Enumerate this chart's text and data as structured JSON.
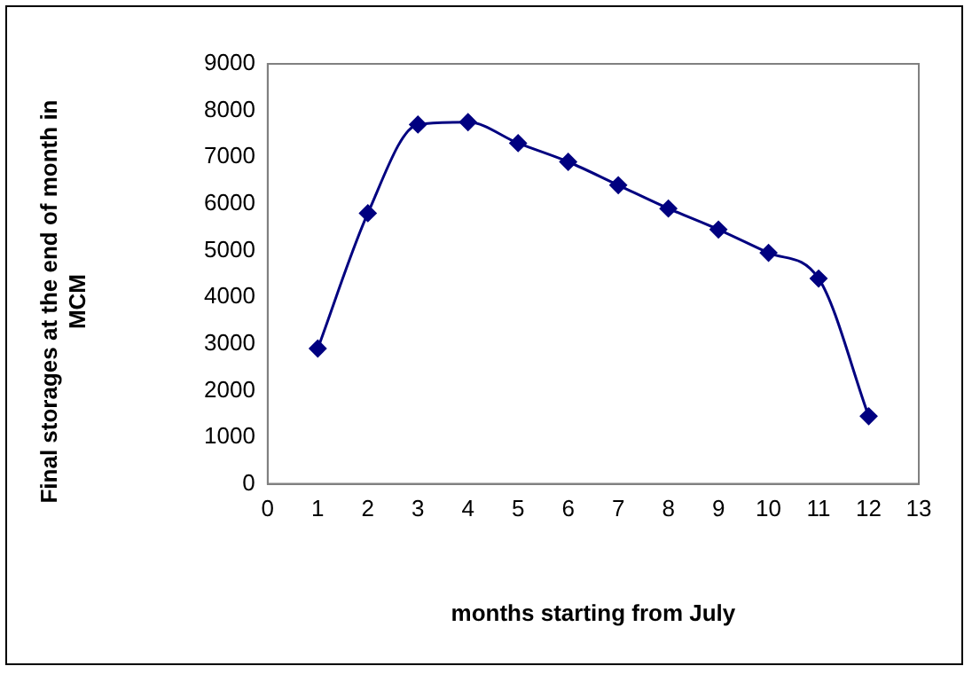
{
  "chart_data": {
    "type": "line",
    "xlabel": "months starting from July",
    "ylabel": "Final storages at the end of month in MCM",
    "x": [
      1,
      2,
      3,
      4,
      5,
      6,
      7,
      8,
      9,
      10,
      11,
      12
    ],
    "series": [
      {
        "color": "#000080",
        "values": [
          2900,
          5800,
          7700,
          7750,
          7300,
          6900,
          6400,
          5900,
          5450,
          4950,
          4400,
          1450
        ]
      }
    ],
    "xlim": [
      0,
      13
    ],
    "xticks": [
      0,
      1,
      2,
      3,
      4,
      5,
      6,
      7,
      8,
      9,
      10,
      11,
      12,
      13
    ],
    "ylim": [
      0,
      9000
    ],
    "yticks": [
      0,
      1000,
      2000,
      3000,
      4000,
      5000,
      6000,
      7000,
      8000,
      9000
    ],
    "grid": false,
    "legend": false,
    "marker": "diamond",
    "line_style": "solid"
  }
}
